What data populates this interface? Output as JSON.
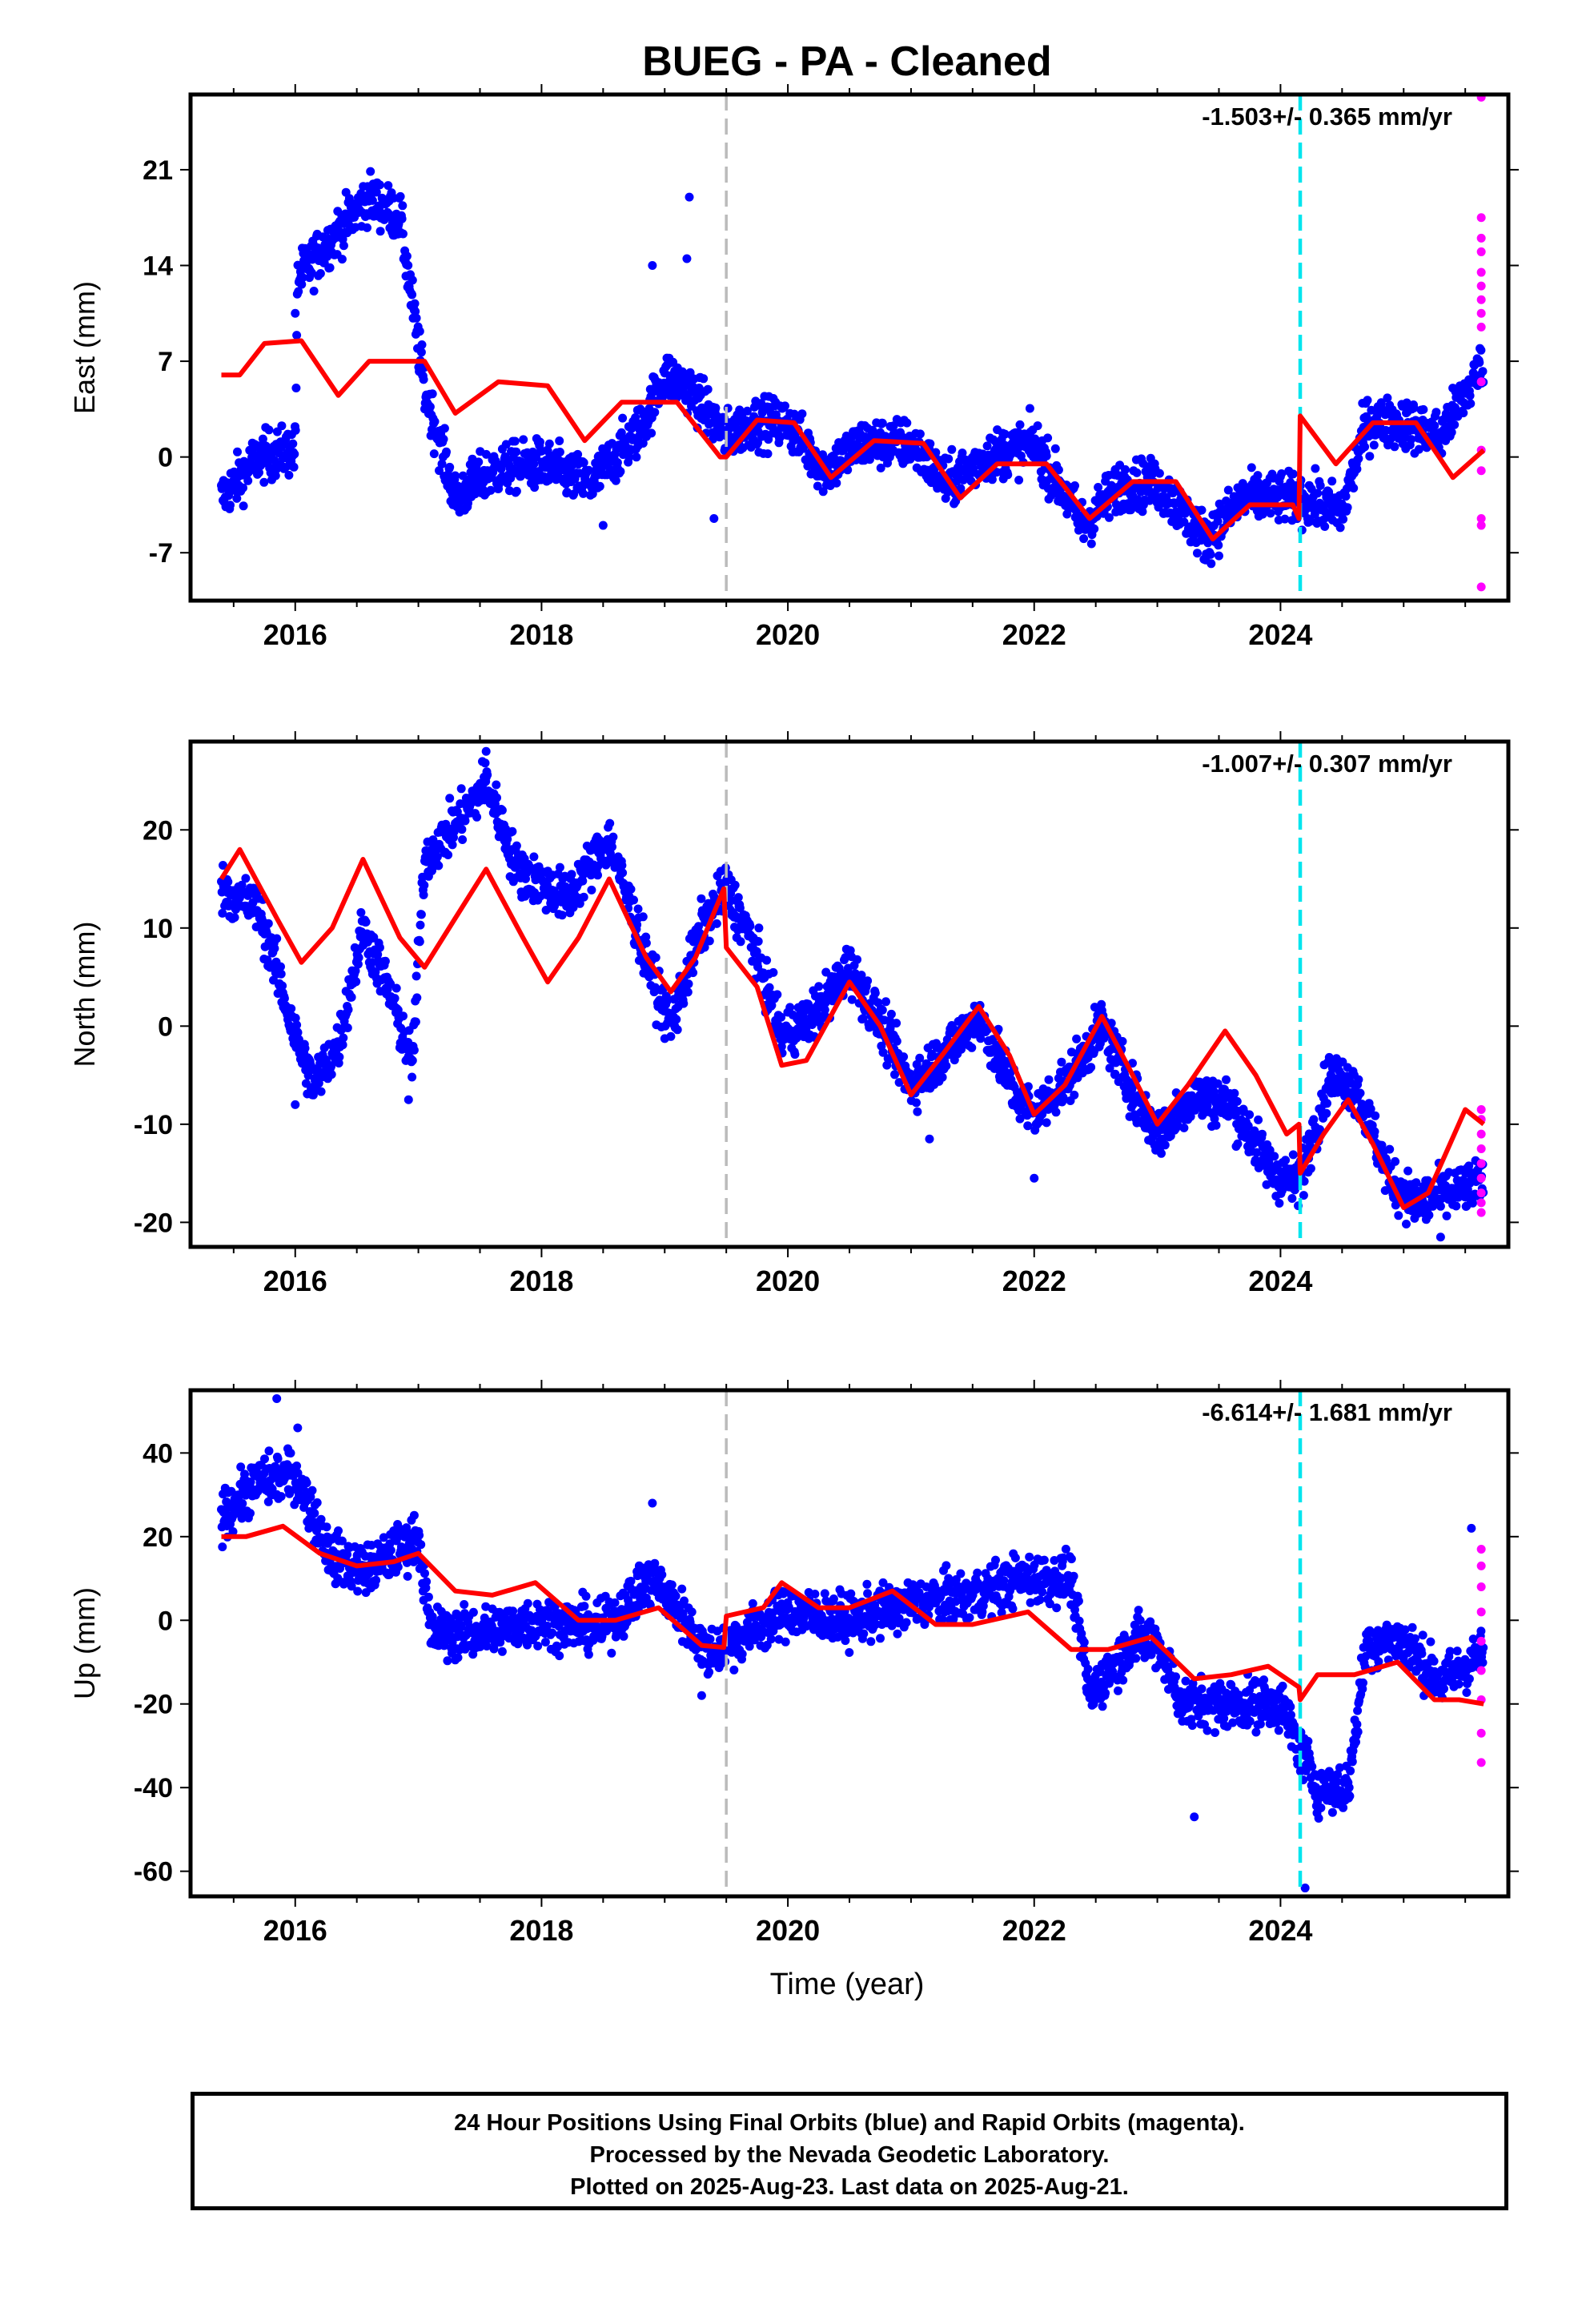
{
  "title": "BUEG  - PA - Cleaned",
  "xlabel": "Time (year)",
  "footer": {
    "line1": "24 Hour Positions Using Final Orbits (blue) and Rapid Orbits (magenta).",
    "line2": "Processed by the Nevada Geodetic Laboratory.",
    "line3": "Plotted on 2025-Aug-23. Last data on 2025-Aug-21."
  },
  "colors": {
    "final_orbits": "#0000ff",
    "rapid_orbits": "#ff00ff",
    "model": "#ff0000",
    "gray_line": "#bbbbbb",
    "cyan_line": "#00e5ee"
  },
  "chart_data": [
    {
      "type": "scatter",
      "ylabel": "East (mm)",
      "xlim": [
        2015.15,
        2025.85
      ],
      "ylim": [
        -10.5,
        26.5
      ],
      "xticks": [
        "2016",
        "2018",
        "2020",
        "2022",
        "2024"
      ],
      "yticks": [
        "21",
        "14",
        "7",
        "0",
        "-7"
      ],
      "ytick_values": [
        21,
        14,
        7,
        0,
        -7
      ],
      "annotation": "-1.503+/- 0.365 mm/yr",
      "vlines": {
        "gray_dashed": 2019.5,
        "cyan_dashed": 2024.16
      },
      "final_trend": [
        [
          2015.4,
          -3
        ],
        [
          2015.7,
          0
        ],
        [
          2016.0,
          0.5
        ],
        [
          2016.02,
          13
        ],
        [
          2016.3,
          16
        ],
        [
          2016.6,
          19
        ],
        [
          2016.85,
          17.5
        ],
        [
          2017.05,
          5
        ],
        [
          2017.3,
          -3
        ],
        [
          2017.6,
          -1
        ],
        [
          2018.0,
          -0.5
        ],
        [
          2018.4,
          -2
        ],
        [
          2018.8,
          2
        ],
        [
          2019.0,
          6
        ],
        [
          2019.2,
          5
        ],
        [
          2019.5,
          1.5
        ],
        [
          2019.7,
          2.5
        ],
        [
          2020.0,
          2.5
        ],
        [
          2020.3,
          -1
        ],
        [
          2020.6,
          1
        ],
        [
          2021.0,
          1
        ],
        [
          2021.3,
          -2
        ],
        [
          2021.6,
          0
        ],
        [
          2022.0,
          1
        ],
        [
          2022.4,
          -5
        ],
        [
          2022.7,
          -2
        ],
        [
          2023.0,
          -2
        ],
        [
          2023.4,
          -6
        ],
        [
          2023.7,
          -3
        ],
        [
          2024.15,
          -3
        ],
        [
          2024.5,
          -4
        ],
        [
          2024.7,
          2.5
        ],
        [
          2025.0,
          2.5
        ],
        [
          2025.3,
          1.5
        ],
        [
          2025.65,
          7
        ]
      ],
      "rapid_points": [
        [
          2025.63,
          26.3
        ],
        [
          2025.63,
          17.5
        ],
        [
          2025.63,
          16
        ],
        [
          2025.63,
          15
        ],
        [
          2025.63,
          13.5
        ],
        [
          2025.63,
          12.5
        ],
        [
          2025.63,
          11.5
        ],
        [
          2025.63,
          10.5
        ],
        [
          2025.63,
          9.5
        ],
        [
          2025.63,
          5.5
        ],
        [
          2025.63,
          0.5
        ],
        [
          2025.63,
          -1
        ],
        [
          2025.63,
          -4.5
        ],
        [
          2025.63,
          -5
        ],
        [
          2025.63,
          -9.5
        ]
      ],
      "outliers": [
        [
          2019.2,
          19
        ],
        [
          2019.18,
          14.5
        ],
        [
          2018.9,
          14
        ],
        [
          2016.0,
          10.5
        ],
        [
          2019.4,
          -4.5
        ],
        [
          2018.5,
          -5
        ]
      ],
      "model": [
        [
          2015.4,
          6
        ],
        [
          2015.55,
          6
        ],
        [
          2015.75,
          8.3
        ],
        [
          2016.05,
          8.5
        ],
        [
          2016.35,
          4.5
        ],
        [
          2016.6,
          7
        ],
        [
          2017.05,
          7
        ],
        [
          2017.3,
          3.2
        ],
        [
          2017.65,
          5.5
        ],
        [
          2018.05,
          5.2
        ],
        [
          2018.35,
          1.2
        ],
        [
          2018.65,
          4
        ],
        [
          2019.1,
          4
        ],
        [
          2019.45,
          0
        ],
        [
          2019.5,
          0
        ],
        [
          2019.75,
          2.7
        ],
        [
          2020.05,
          2.5
        ],
        [
          2020.35,
          -1.5
        ],
        [
          2020.7,
          1.2
        ],
        [
          2021.1,
          1
        ],
        [
          2021.4,
          -3
        ],
        [
          2021.7,
          -0.5
        ],
        [
          2022.1,
          -0.5
        ],
        [
          2022.45,
          -4.5
        ],
        [
          2022.8,
          -1.8
        ],
        [
          2023.15,
          -1.8
        ],
        [
          2023.45,
          -6
        ],
        [
          2023.75,
          -3.5
        ],
        [
          2024.1,
          -3.5
        ],
        [
          2024.15,
          -4.5
        ],
        [
          2024.16,
          3
        ],
        [
          2024.45,
          -0.5
        ],
        [
          2024.75,
          2.5
        ],
        [
          2025.1,
          2.5
        ],
        [
          2025.4,
          -1.5
        ],
        [
          2025.65,
          0.5
        ]
      ]
    },
    {
      "type": "scatter",
      "ylabel": "North (mm)",
      "xlim": [
        2015.15,
        2025.85
      ],
      "ylim": [
        -22.5,
        29
      ],
      "xticks": [
        "2016",
        "2018",
        "2020",
        "2022",
        "2024"
      ],
      "yticks": [
        "20",
        "10",
        "0",
        "-10",
        "-20"
      ],
      "ytick_values": [
        20,
        10,
        0,
        -10,
        -20
      ],
      "annotation": "-1.007+/- 0.307 mm/yr",
      "vlines": {
        "gray_dashed": 2019.5,
        "cyan_dashed": 2024.16
      },
      "final_trend": [
        [
          2015.4,
          14
        ],
        [
          2015.7,
          12
        ],
        [
          2016.0,
          -1
        ],
        [
          2016.15,
          -6
        ],
        [
          2016.35,
          -2
        ],
        [
          2016.55,
          10
        ],
        [
          2016.75,
          4
        ],
        [
          2016.95,
          -4
        ],
        [
          2017.05,
          17
        ],
        [
          2017.4,
          22
        ],
        [
          2017.55,
          25
        ],
        [
          2017.8,
          16
        ],
        [
          2018.2,
          13
        ],
        [
          2018.55,
          19
        ],
        [
          2018.9,
          5
        ],
        [
          2019.05,
          0
        ],
        [
          2019.3,
          10
        ],
        [
          2019.5,
          14
        ],
        [
          2019.7,
          9
        ],
        [
          2019.95,
          -1
        ],
        [
          2020.2,
          1
        ],
        [
          2020.5,
          6
        ],
        [
          2020.8,
          -1
        ],
        [
          2021.0,
          -6
        ],
        [
          2021.25,
          -3
        ],
        [
          2021.55,
          1
        ],
        [
          2021.85,
          -7
        ],
        [
          2022.0,
          -9
        ],
        [
          2022.3,
          -5
        ],
        [
          2022.55,
          0
        ],
        [
          2022.85,
          -8
        ],
        [
          2023.0,
          -11
        ],
        [
          2023.3,
          -7
        ],
        [
          2023.6,
          -8
        ],
        [
          2023.95,
          -15
        ],
        [
          2024.15,
          -16
        ],
        [
          2024.4,
          -5
        ],
        [
          2024.6,
          -6
        ],
        [
          2024.9,
          -16
        ],
        [
          2025.1,
          -18
        ],
        [
          2025.4,
          -17
        ],
        [
          2025.65,
          -16
        ]
      ],
      "rapid_points": [
        [
          2025.63,
          -8.5
        ],
        [
          2025.63,
          -9.5
        ],
        [
          2025.63,
          -11
        ],
        [
          2025.63,
          -12.5
        ],
        [
          2025.63,
          -14
        ],
        [
          2025.63,
          -15.5
        ],
        [
          2025.63,
          -17
        ],
        [
          2025.63,
          -18
        ],
        [
          2025.63,
          -19
        ]
      ],
      "outliers": [
        [
          2016.0,
          -8
        ],
        [
          2016.92,
          -7.5
        ],
        [
          2017.55,
          28
        ],
        [
          2021.15,
          -11.5
        ],
        [
          2022.0,
          -15.5
        ],
        [
          2025.3,
          -21.5
        ]
      ],
      "model": [
        [
          2015.4,
          15
        ],
        [
          2015.55,
          18
        ],
        [
          2015.85,
          11
        ],
        [
          2016.05,
          6.5
        ],
        [
          2016.3,
          10
        ],
        [
          2016.55,
          17
        ],
        [
          2016.85,
          9
        ],
        [
          2017.05,
          6
        ],
        [
          2017.3,
          11
        ],
        [
          2017.55,
          16
        ],
        [
          2017.85,
          9
        ],
        [
          2018.05,
          4.5
        ],
        [
          2018.3,
          9
        ],
        [
          2018.55,
          15
        ],
        [
          2018.85,
          7
        ],
        [
          2019.05,
          3.5
        ],
        [
          2019.25,
          7
        ],
        [
          2019.48,
          14
        ],
        [
          2019.5,
          8
        ],
        [
          2019.75,
          4
        ],
        [
          2019.95,
          -4
        ],
        [
          2020.15,
          -3.5
        ],
        [
          2020.5,
          4.5
        ],
        [
          2020.75,
          0
        ],
        [
          2021.0,
          -7
        ],
        [
          2021.25,
          -3
        ],
        [
          2021.55,
          2
        ],
        [
          2021.8,
          -3
        ],
        [
          2022.0,
          -9
        ],
        [
          2022.25,
          -6
        ],
        [
          2022.55,
          1
        ],
        [
          2022.8,
          -5
        ],
        [
          2023.0,
          -10
        ],
        [
          2023.25,
          -6
        ],
        [
          2023.55,
          -0.5
        ],
        [
          2023.8,
          -5
        ],
        [
          2024.05,
          -11
        ],
        [
          2024.15,
          -10
        ],
        [
          2024.16,
          -15
        ],
        [
          2024.35,
          -11
        ],
        [
          2024.55,
          -7.5
        ],
        [
          2024.75,
          -12
        ],
        [
          2025.0,
          -18.5
        ],
        [
          2025.2,
          -17
        ],
        [
          2025.5,
          -8.5
        ],
        [
          2025.65,
          -10
        ]
      ]
    },
    {
      "type": "scatter",
      "ylabel": "Up (mm)",
      "xlim": [
        2015.15,
        2025.85
      ],
      "ylim": [
        -66,
        55
      ],
      "xticks": [
        "2016",
        "2018",
        "2020",
        "2022",
        "2024"
      ],
      "yticks": [
        "40",
        "20",
        "0",
        "-20",
        "-40",
        "-60"
      ],
      "ytick_values": [
        40,
        20,
        0,
        -20,
        -40,
        -60
      ],
      "annotation": "-6.614+/- 1.681 mm/yr",
      "vlines": {
        "gray_dashed": 2019.5,
        "cyan_dashed": 2024.16
      },
      "final_trend": [
        [
          2015.4,
          25
        ],
        [
          2015.7,
          33
        ],
        [
          2016.0,
          35
        ],
        [
          2016.3,
          15
        ],
        [
          2016.6,
          12
        ],
        [
          2017.0,
          20
        ],
        [
          2017.1,
          -3
        ],
        [
          2017.5,
          -3
        ],
        [
          2018.0,
          0
        ],
        [
          2018.5,
          -2
        ],
        [
          2018.9,
          10
        ],
        [
          2019.1,
          3
        ],
        [
          2019.35,
          -8
        ],
        [
          2019.6,
          -4
        ],
        [
          2020.0,
          2
        ],
        [
          2020.5,
          0
        ],
        [
          2021.0,
          4
        ],
        [
          2021.5,
          6
        ],
        [
          2021.9,
          10
        ],
        [
          2022.3,
          10
        ],
        [
          2022.45,
          -18
        ],
        [
          2022.8,
          -5
        ],
        [
          2023.0,
          -5
        ],
        [
          2023.2,
          -20
        ],
        [
          2023.6,
          -20
        ],
        [
          2024.0,
          -20
        ],
        [
          2024.3,
          -40
        ],
        [
          2024.55,
          -40
        ],
        [
          2024.7,
          -5
        ],
        [
          2025.0,
          -5
        ],
        [
          2025.3,
          -15
        ],
        [
          2025.65,
          -8
        ]
      ],
      "rapid_points": [
        [
          2025.63,
          17
        ],
        [
          2025.63,
          13
        ],
        [
          2025.63,
          8
        ],
        [
          2025.63,
          2
        ],
        [
          2025.63,
          -5
        ],
        [
          2025.63,
          -12
        ],
        [
          2025.63,
          -19
        ],
        [
          2025.63,
          -27
        ],
        [
          2025.63,
          -34
        ]
      ],
      "outliers": [
        [
          2015.85,
          53
        ],
        [
          2016.02,
          46
        ],
        [
          2024.2,
          -64
        ],
        [
          2023.3,
          -47
        ],
        [
          2018.9,
          28
        ],
        [
          2025.55,
          22
        ],
        [
          2019.3,
          -18
        ]
      ],
      "model": [
        [
          2015.4,
          20
        ],
        [
          2015.6,
          20
        ],
        [
          2015.9,
          22.5
        ],
        [
          2016.2,
          16
        ],
        [
          2016.5,
          13
        ],
        [
          2016.8,
          14
        ],
        [
          2017.0,
          16
        ],
        [
          2017.3,
          7
        ],
        [
          2017.6,
          6
        ],
        [
          2017.95,
          9
        ],
        [
          2018.3,
          0
        ],
        [
          2018.6,
          0
        ],
        [
          2018.95,
          3
        ],
        [
          2019.3,
          -6
        ],
        [
          2019.48,
          -6.5
        ],
        [
          2019.5,
          1
        ],
        [
          2019.8,
          3
        ],
        [
          2019.95,
          9
        ],
        [
          2020.25,
          3
        ],
        [
          2020.5,
          3
        ],
        [
          2020.85,
          7
        ],
        [
          2021.2,
          -1
        ],
        [
          2021.5,
          -1
        ],
        [
          2021.95,
          2
        ],
        [
          2022.3,
          -7
        ],
        [
          2022.6,
          -7
        ],
        [
          2022.95,
          -4
        ],
        [
          2023.3,
          -14
        ],
        [
          2023.6,
          -13
        ],
        [
          2023.9,
          -11
        ],
        [
          2024.15,
          -16
        ],
        [
          2024.16,
          -19
        ],
        [
          2024.3,
          -13
        ],
        [
          2024.6,
          -13
        ],
        [
          2024.95,
          -10
        ],
        [
          2025.25,
          -19
        ],
        [
          2025.45,
          -19
        ],
        [
          2025.65,
          -20
        ]
      ]
    }
  ]
}
